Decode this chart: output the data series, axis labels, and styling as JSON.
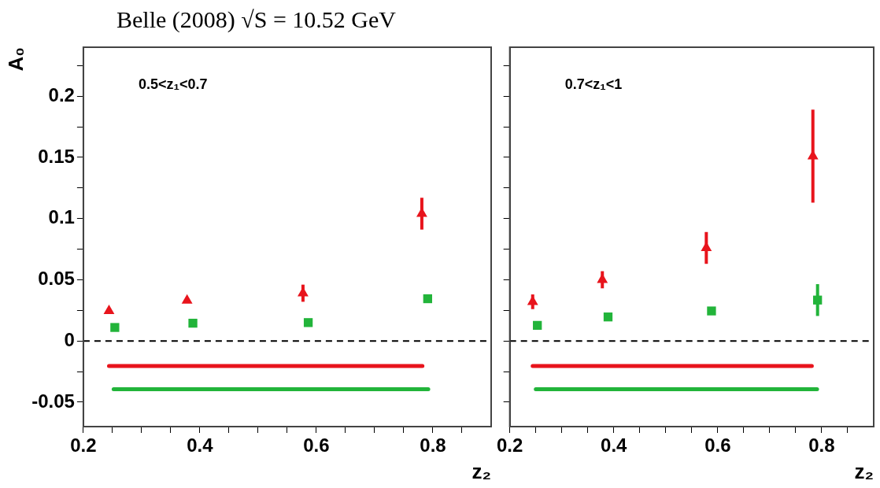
{
  "chart_data": [
    {
      "type": "scatter",
      "title": "Belle (2008) √S = 10.52 GeV",
      "xlabel": "z₂",
      "ylabel": "A₀",
      "annotations": [
        "0.5<z₁<0.7"
      ],
      "xlim": [
        0.2,
        0.9
      ],
      "ylim": [
        -0.07,
        0.24
      ],
      "xticks": [
        0.2,
        {
          "value": 0.25,
          "label": null
        },
        {
          "value": 0.3,
          "label": null
        },
        {
          "value": 0.35,
          "label": null
        },
        0.4,
        {
          "value": 0.45,
          "label": null
        },
        {
          "value": 0.5,
          "label": null
        },
        {
          "value": 0.55,
          "label": null
        },
        0.6,
        {
          "value": 0.65,
          "label": null
        },
        {
          "value": 0.7,
          "label": null
        },
        {
          "value": 0.75,
          "label": null
        },
        0.8,
        {
          "value": 0.85,
          "label": null
        }
      ],
      "yticks": [
        -0.05,
        {
          "value": -0.025,
          "label": null
        },
        0,
        {
          "value": 0.025,
          "label": null
        },
        0.05,
        {
          "value": 0.075,
          "label": null
        },
        0.1,
        {
          "value": 0.125,
          "label": null
        },
        0.15,
        {
          "value": 0.175,
          "label": null
        },
        0.2,
        {
          "value": 0.225,
          "label": null
        }
      ],
      "legend": false,
      "ref_lines": [
        {
          "axis": "y",
          "value": 0,
          "color": "#000000",
          "line_style": "dashed"
        }
      ],
      "series": [
        {
          "type": "scatter",
          "marker": "triangle",
          "color": "#e8141c",
          "x": [
            0.244,
            0.378,
            0.577,
            0.781
          ],
          "values": [
            0.0245,
            0.033,
            0.039,
            0.104
          ],
          "errors": [
            null,
            null,
            0.007,
            0.013
          ]
        },
        {
          "type": "scatter",
          "marker": "square",
          "color": "#22b43a",
          "x": [
            0.254,
            0.388,
            0.586,
            0.791
          ],
          "values": [
            0.011,
            0.0145,
            0.015,
            0.0345
          ]
        },
        {
          "type": "line",
          "marker": "none",
          "color": "#e8141c",
          "x": [
            0.244,
            0.782
          ],
          "values": [
            -0.0205,
            -0.0205
          ]
        },
        {
          "type": "line",
          "marker": "none",
          "color": "#22b43a",
          "x": [
            0.252,
            0.792
          ],
          "values": [
            -0.0395,
            -0.0395
          ]
        }
      ]
    },
    {
      "type": "scatter",
      "xlabel": "z₂",
      "annotations": [
        "0.7<z₁<1"
      ],
      "tick_labels": "x",
      "xlim": [
        0.2,
        0.9
      ],
      "ylim": [
        -0.07,
        0.24
      ],
      "xticks": [
        0.2,
        {
          "value": 0.25,
          "label": null
        },
        {
          "value": 0.3,
          "label": null
        },
        {
          "value": 0.35,
          "label": null
        },
        0.4,
        {
          "value": 0.45,
          "label": null
        },
        {
          "value": 0.5,
          "label": null
        },
        {
          "value": 0.55,
          "label": null
        },
        0.6,
        {
          "value": 0.65,
          "label": null
        },
        {
          "value": 0.7,
          "label": null
        },
        {
          "value": 0.75,
          "label": null
        },
        0.8,
        {
          "value": 0.85,
          "label": null
        }
      ],
      "yticks": [
        -0.05,
        {
          "value": -0.025,
          "label": null
        },
        0,
        {
          "value": 0.025,
          "label": null
        },
        0.05,
        {
          "value": 0.075,
          "label": null
        },
        0.1,
        {
          "value": 0.125,
          "label": null
        },
        0.15,
        {
          "value": 0.175,
          "label": null
        },
        0.2,
        {
          "value": 0.225,
          "label": null
        }
      ],
      "legend": false,
      "ref_lines": [
        {
          "axis": "y",
          "value": 0,
          "color": "#000000",
          "line_style": "dashed"
        }
      ],
      "series": [
        {
          "type": "scatter",
          "marker": "triangle",
          "color": "#e8141c",
          "x": [
            0.244,
            0.378,
            0.578,
            0.783
          ],
          "values": [
            0.032,
            0.05,
            0.076,
            0.151
          ],
          "errors": [
            0.006,
            0.007,
            0.013,
            0.038
          ]
        },
        {
          "type": "scatter",
          "marker": "square",
          "color": "#22b43a",
          "x": [
            0.253,
            0.389,
            0.588,
            0.792
          ],
          "values": [
            0.0127,
            0.0196,
            0.0245,
            0.0334
          ],
          "errors": [
            null,
            null,
            null,
            0.013
          ]
        },
        {
          "type": "line",
          "marker": "none",
          "color": "#e8141c",
          "x": [
            0.244,
            0.781
          ],
          "values": [
            -0.0205,
            -0.0205
          ]
        },
        {
          "type": "line",
          "marker": "none",
          "color": "#22b43a",
          "x": [
            0.25,
            0.791
          ],
          "values": [
            -0.0395,
            -0.0395
          ]
        }
      ]
    }
  ]
}
